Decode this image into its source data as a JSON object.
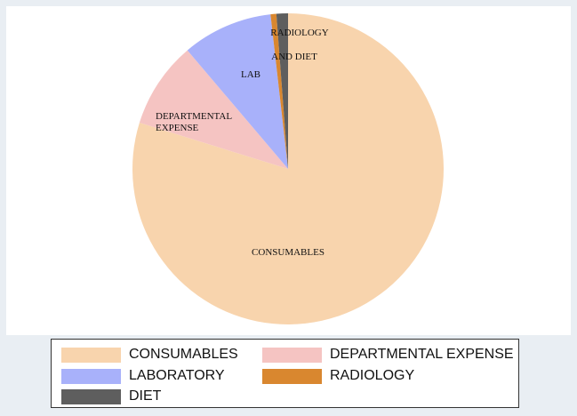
{
  "colors": {
    "background": "#e9eef3",
    "plot_background": "#ffffff"
  },
  "chart_data": {
    "type": "pie",
    "title": "",
    "start": "12 o'clock",
    "direction": "clockwise",
    "slices": [
      {
        "name": "CONSUMABLES",
        "value": 79.8,
        "color": "#f8d4ad",
        "label": "CONSUMABLES"
      },
      {
        "name": "DEPARTMENTAL EXPENSE",
        "value": 9.0,
        "color": "#f5c4c2",
        "label": "DEPARTMENTAL EXPENSE"
      },
      {
        "name": "LABORATORY",
        "value": 9.4,
        "color": "#a8b1fa",
        "label": "LAB"
      },
      {
        "name": "RADIOLOGY",
        "value": 0.6,
        "color": "#d9872f",
        "label": "RADIOLOGY"
      },
      {
        "name": "DIET",
        "value": 1.2,
        "color": "#5e5e5e",
        "label": "AND DIET"
      }
    ],
    "legend": {
      "position": "bottom",
      "entries": [
        "CONSUMABLES",
        "DEPARTMENTAL EXPENSE",
        "LABORATORY",
        "RADIOLOGY",
        "DIET"
      ]
    }
  }
}
